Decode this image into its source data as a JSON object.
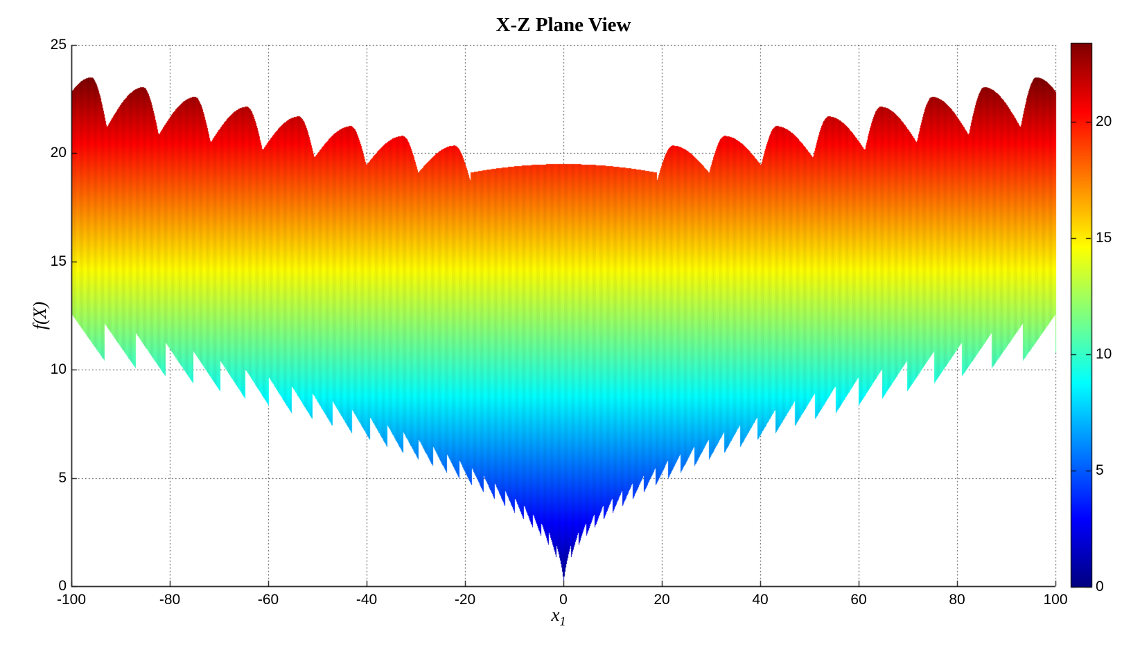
{
  "figure": {
    "title": "X-Z Plane View",
    "background": "#ffffff"
  },
  "axes": {
    "xlabel_base": "x",
    "xlabel_sub": "1",
    "ylabel": "f(X)",
    "x_ticks": [
      -100,
      -80,
      -60,
      -40,
      -20,
      0,
      20,
      40,
      60,
      80,
      100
    ],
    "y_ticks": [
      0,
      5,
      10,
      15,
      20,
      25
    ],
    "x_range": [
      -100,
      100
    ],
    "y_range": [
      0,
      25
    ],
    "grid_style": "dotted"
  },
  "colorbar": {
    "ticks": [
      0,
      5,
      10,
      15,
      20
    ],
    "vmin": 0,
    "vmax": 23.4,
    "colormap": "jet",
    "bottom_color": "#00008f",
    "top_color": "#800000"
  },
  "chart_data": {
    "type": "surface",
    "title": "X-Z Plane View",
    "xlabel": "x_1",
    "ylabel": "f(X)",
    "view": "X-Z plane silhouette of a 2-D multimodal (Ackley-type) benchmark surface, color = f value (jet)",
    "x1_domain": [
      -100,
      100
    ],
    "f_axis_range": [
      0,
      25
    ],
    "color_range": [
      0,
      23.4
    ],
    "colormap": "jet",
    "grid": true,
    "legend": "colorbar right",
    "global_minimum": {
      "x1": 0,
      "f": 0
    },
    "center_dome": {
      "abs_x1_half_width": 19,
      "peak_f": 19.5,
      "edge_f": 19.1
    },
    "upper_envelope_peaks": {
      "symmetric_about_x1_0": true,
      "abs_x1": [
        22.2,
        32.7,
        43.3,
        53.8,
        64.4,
        74.9,
        85.5,
        96.0
      ],
      "f": [
        20.35,
        20.8,
        21.25,
        21.7,
        22.15,
        22.6,
        23.05,
        23.5
      ]
    },
    "lower_envelope": {
      "base_f": "1.08*sqrt(|x1|)",
      "f_at_edges_min_max": [
        10.8,
        12.6
      ],
      "teeth_spacing_units_center_to_edge": [
        1.4,
        6.9
      ],
      "teeth_depth_center_to_edge": [
        0.6,
        1.8
      ],
      "tooth_cliffs_face": "center"
    },
    "silhouette_model": {
      "dome": {
        "radius": 19,
        "peak": 19.5,
        "curv": 0.0011
      },
      "fins": {
        "start": 19,
        "period": 10.55,
        "riseFrac": 0.3,
        "tip0": 20.35,
        "tipStep": 0.45,
        "notchDepth0": 1.6,
        "notchDepthStep": 0.1,
        "count": 8
      },
      "teeth": {
        "baseCoef": 1.08,
        "spacing0": 1.4,
        "spacingGrow": 0.055,
        "depth0": 0.6,
        "depthGrow": 0.012
      }
    }
  }
}
